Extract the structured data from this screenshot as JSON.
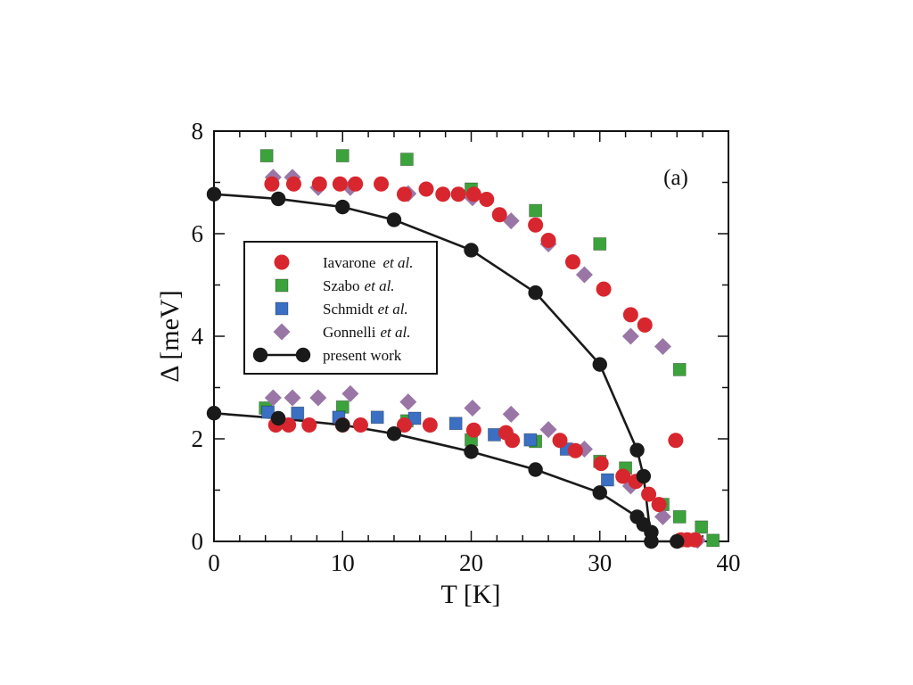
{
  "chart_data": {
    "type": "scatter",
    "panel_label": "(a)",
    "xlabel": "T [K]",
    "ylabel": "Δ  [meV]",
    "xlim": [
      0,
      40
    ],
    "ylim": [
      0,
      8
    ],
    "xticks": [
      0,
      10,
      20,
      30,
      40
    ],
    "yticks": [
      0,
      2,
      4,
      6,
      8
    ],
    "legend_position": "middle-left",
    "colors": {
      "iavarone": "#d8262e",
      "szabo": "#3ca33c",
      "schmidt": "#3a6fc3",
      "gonnelli": "#9a76a6",
      "present": "#1a1a1a"
    },
    "series": [
      {
        "key": "iavarone",
        "name_main": "Iavarone",
        "name_etal": "et al.",
        "marker": "circle",
        "color": "#d8262e",
        "points": [
          [
            4.5,
            6.97
          ],
          [
            6.2,
            6.97
          ],
          [
            8.2,
            6.97
          ],
          [
            9.8,
            6.97
          ],
          [
            11.0,
            6.97
          ],
          [
            13.0,
            6.97
          ],
          [
            14.8,
            6.77
          ],
          [
            16.5,
            6.87
          ],
          [
            17.8,
            6.77
          ],
          [
            19.0,
            6.77
          ],
          [
            20.2,
            6.77
          ],
          [
            21.2,
            6.67
          ],
          [
            22.2,
            6.37
          ],
          [
            25.0,
            6.17
          ],
          [
            26.0,
            5.87
          ],
          [
            27.9,
            5.45
          ],
          [
            30.3,
            4.92
          ],
          [
            32.4,
            4.42
          ],
          [
            33.5,
            4.22
          ],
          [
            35.9,
            1.97
          ],
          [
            36.3,
            0.03
          ],
          [
            4.8,
            2.27
          ],
          [
            5.8,
            2.27
          ],
          [
            7.4,
            2.27
          ],
          [
            10.0,
            2.27
          ],
          [
            11.4,
            2.27
          ],
          [
            14.8,
            2.27
          ],
          [
            16.8,
            2.27
          ],
          [
            20.2,
            2.17
          ],
          [
            22.7,
            2.12
          ],
          [
            23.2,
            1.97
          ],
          [
            26.9,
            1.97
          ],
          [
            28.1,
            1.77
          ],
          [
            30.1,
            1.52
          ],
          [
            31.8,
            1.27
          ],
          [
            32.8,
            1.17
          ],
          [
            33.8,
            0.92
          ],
          [
            34.6,
            0.72
          ],
          [
            36.8,
            0.03
          ],
          [
            37.4,
            0.03
          ]
        ]
      },
      {
        "key": "szabo",
        "name_main": "Szabo",
        "name_etal": "et al.",
        "marker": "square",
        "color": "#3ca33c",
        "points": [
          [
            4.1,
            7.52
          ],
          [
            10.0,
            7.52
          ],
          [
            15.0,
            7.45
          ],
          [
            20.0,
            6.87
          ],
          [
            25.0,
            6.45
          ],
          [
            30.0,
            5.8
          ],
          [
            36.2,
            3.35
          ],
          [
            4.0,
            2.6
          ],
          [
            10.0,
            2.62
          ],
          [
            15.0,
            2.35
          ],
          [
            20.0,
            1.98
          ],
          [
            25.0,
            1.95
          ],
          [
            30.0,
            1.56
          ],
          [
            32.0,
            1.43
          ],
          [
            34.9,
            0.72
          ],
          [
            36.2,
            0.48
          ],
          [
            37.9,
            0.28
          ],
          [
            38.8,
            0.02
          ]
        ]
      },
      {
        "key": "schmidt",
        "name_main": "Schmidt",
        "name_etal": "et al.",
        "marker": "square",
        "color": "#3a6fc3",
        "points": [
          [
            4.2,
            2.52
          ],
          [
            6.5,
            2.5
          ],
          [
            9.7,
            2.42
          ],
          [
            12.7,
            2.42
          ],
          [
            15.6,
            2.4
          ],
          [
            18.8,
            2.3
          ],
          [
            21.8,
            2.08
          ],
          [
            24.6,
            1.98
          ],
          [
            27.4,
            1.8
          ],
          [
            30.6,
            1.2
          ]
        ]
      },
      {
        "key": "gonnelli",
        "name_main": "Gonnelli",
        "name_etal": "et al.",
        "marker": "diamond",
        "color": "#9a76a6",
        "points": [
          [
            4.6,
            7.1
          ],
          [
            6.1,
            7.1
          ],
          [
            8.1,
            6.9
          ],
          [
            10.6,
            6.9
          ],
          [
            15.1,
            6.78
          ],
          [
            20.1,
            6.7
          ],
          [
            23.1,
            6.25
          ],
          [
            26.0,
            5.8
          ],
          [
            28.8,
            5.2
          ],
          [
            32.4,
            4.0
          ],
          [
            34.9,
            3.8
          ],
          [
            4.6,
            2.8
          ],
          [
            6.1,
            2.8
          ],
          [
            8.1,
            2.8
          ],
          [
            10.6,
            2.88
          ],
          [
            15.1,
            2.72
          ],
          [
            20.1,
            2.6
          ],
          [
            23.1,
            2.48
          ],
          [
            26.0,
            2.18
          ],
          [
            28.8,
            1.8
          ],
          [
            32.4,
            1.08
          ],
          [
            34.9,
            0.48
          ],
          [
            37.6,
            0.02
          ]
        ]
      },
      {
        "key": "present",
        "name_main": "present work",
        "name_etal": "",
        "marker": "circle-line",
        "color": "#1a1a1a",
        "curves": [
          [
            [
              0,
              6.77
            ],
            [
              5,
              6.68
            ],
            [
              10,
              6.52
            ],
            [
              14,
              6.27
            ],
            [
              20,
              5.68
            ],
            [
              25,
              4.85
            ],
            [
              30,
              3.45
            ],
            [
              32.9,
              1.78
            ],
            [
              33.4,
              1.27
            ],
            [
              34.0,
              0.0
            ]
          ],
          [
            [
              0,
              2.5
            ],
            [
              5,
              2.4
            ],
            [
              10,
              2.27
            ],
            [
              14,
              2.1
            ],
            [
              20,
              1.75
            ],
            [
              25,
              1.4
            ],
            [
              30,
              0.95
            ],
            [
              32.9,
              0.48
            ],
            [
              33.4,
              0.33
            ],
            [
              34.0,
              0.18
            ],
            [
              34.0,
              0.0
            ],
            [
              36.0,
              0.0
            ]
          ]
        ]
      }
    ]
  }
}
